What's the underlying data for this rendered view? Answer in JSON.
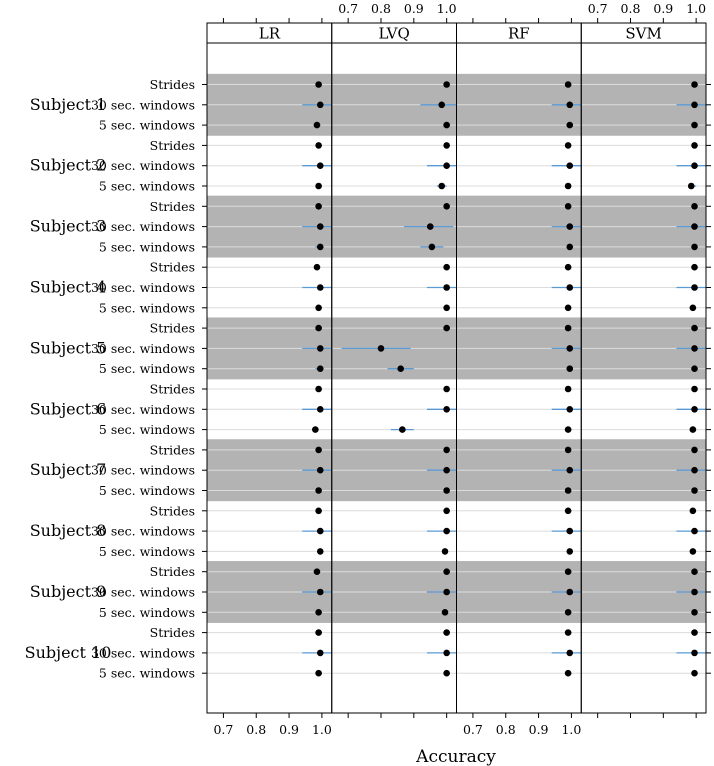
{
  "chart_data": {
    "type": "dotplot",
    "xlabel": "Accuracy",
    "panels": [
      "LR",
      "LVQ",
      "RF",
      "SVM"
    ],
    "xlim": [
      0.65,
      1.03
    ],
    "x_ticks": [
      0.7,
      0.8,
      0.9,
      1.0
    ],
    "x_tick_labels": [
      "0.7",
      "0.8",
      "0.9",
      "1.0"
    ],
    "row_labels": [
      "Strides",
      "30 sec. windows",
      "5 sec. windows"
    ],
    "shaded_subjects": [
      "Subject 1",
      "Subject 3",
      "Subject 5",
      "Subject 7",
      "Subject 9"
    ],
    "colors": {
      "shade": "#b3b3b3",
      "interval": "#5b9bd5",
      "point": "#000000",
      "refline": "#dcdcdc"
    },
    "subjects": [
      {
        "name": "Subject 1",
        "rows": [
          {
            "label": "Strides",
            "values": [
              [
                0.99,
                0.99,
                1.0
              ],
              [
                1.0,
                1.0,
                1.0
              ],
              [
                0.99,
                0.99,
                1.0
              ],
              [
                0.995,
                0.99,
                1.0
              ]
            ]
          },
          {
            "label": "30 sec. windows",
            "values": [
              [
                0.995,
                0.94,
                1.03
              ],
              [
                0.985,
                0.92,
                1.03
              ],
              [
                0.995,
                0.94,
                1.03
              ],
              [
                0.995,
                0.94,
                1.03
              ]
            ]
          },
          {
            "label": "5 sec. windows",
            "values": [
              [
                0.985,
                0.98,
                0.99
              ],
              [
                1.0,
                1.0,
                1.0
              ],
              [
                0.995,
                0.99,
                1.0
              ],
              [
                0.995,
                0.99,
                1.0
              ]
            ]
          }
        ]
      },
      {
        "name": "Subject 2",
        "rows": [
          {
            "label": "Strides",
            "values": [
              [
                0.99,
                0.99,
                1.0
              ],
              [
                1.0,
                1.0,
                1.0
              ],
              [
                0.99,
                0.99,
                1.0
              ],
              [
                0.995,
                0.99,
                1.0
              ]
            ]
          },
          {
            "label": "30 sec. windows",
            "values": [
              [
                0.995,
                0.94,
                1.03
              ],
              [
                1.0,
                0.94,
                1.03
              ],
              [
                0.995,
                0.94,
                1.03
              ],
              [
                0.995,
                0.94,
                1.03
              ]
            ]
          },
          {
            "label": "5 sec. windows",
            "values": [
              [
                0.99,
                0.99,
                1.0
              ],
              [
                0.985,
                0.97,
                1.0
              ],
              [
                0.99,
                0.99,
                1.0
              ],
              [
                0.985,
                0.98,
                1.0
              ]
            ]
          }
        ]
      },
      {
        "name": "Subject 3",
        "rows": [
          {
            "label": "Strides",
            "values": [
              [
                0.99,
                0.99,
                1.0
              ],
              [
                1.0,
                1.0,
                1.0
              ],
              [
                0.99,
                0.99,
                1.0
              ],
              [
                0.995,
                0.99,
                1.0
              ]
            ]
          },
          {
            "label": "30 sec. windows",
            "values": [
              [
                0.995,
                0.94,
                1.03
              ],
              [
                0.95,
                0.87,
                1.02
              ],
              [
                0.995,
                0.94,
                1.03
              ],
              [
                0.995,
                0.94,
                1.03
              ]
            ]
          },
          {
            "label": "5 sec. windows",
            "values": [
              [
                0.995,
                0.98,
                1.0
              ],
              [
                0.955,
                0.92,
                0.99
              ],
              [
                0.995,
                0.99,
                1.0
              ],
              [
                0.995,
                0.99,
                1.0
              ]
            ]
          }
        ]
      },
      {
        "name": "Subject 4",
        "rows": [
          {
            "label": "Strides",
            "values": [
              [
                0.985,
                0.98,
                0.99
              ],
              [
                1.0,
                1.0,
                1.0
              ],
              [
                0.99,
                0.99,
                1.0
              ],
              [
                0.995,
                0.99,
                1.0
              ]
            ]
          },
          {
            "label": "30 sec. windows",
            "values": [
              [
                0.995,
                0.94,
                1.03
              ],
              [
                1.0,
                0.94,
                1.03
              ],
              [
                0.995,
                0.94,
                1.03
              ],
              [
                0.995,
                0.94,
                1.03
              ]
            ]
          },
          {
            "label": "5 sec. windows",
            "values": [
              [
                0.99,
                0.99,
                1.0
              ],
              [
                1.0,
                1.0,
                1.0
              ],
              [
                0.99,
                0.99,
                1.0
              ],
              [
                0.99,
                0.98,
                1.0
              ]
            ]
          }
        ]
      },
      {
        "name": "Subject 5",
        "rows": [
          {
            "label": "Strides",
            "values": [
              [
                0.99,
                0.99,
                1.0
              ],
              [
                1.0,
                1.0,
                1.0
              ],
              [
                0.99,
                0.99,
                1.0
              ],
              [
                0.995,
                0.99,
                1.0
              ]
            ]
          },
          {
            "label": "30 sec. windows",
            "values": [
              [
                0.995,
                0.94,
                1.03
              ],
              [
                0.8,
                0.68,
                0.89
              ],
              [
                0.995,
                0.94,
                1.03
              ],
              [
                0.995,
                0.94,
                1.03
              ]
            ]
          },
          {
            "label": "5 sec. windows",
            "values": [
              [
                0.995,
                0.98,
                1.0
              ],
              [
                0.86,
                0.82,
                0.9
              ],
              [
                0.995,
                0.99,
                1.0
              ],
              [
                0.995,
                0.99,
                1.0
              ]
            ]
          }
        ]
      },
      {
        "name": "Subject 6",
        "rows": [
          {
            "label": "Strides",
            "values": [
              [
                0.99,
                0.99,
                1.0
              ],
              [
                1.0,
                1.0,
                1.0
              ],
              [
                0.99,
                0.99,
                1.0
              ],
              [
                0.995,
                0.99,
                1.0
              ]
            ]
          },
          {
            "label": "30 sec. windows",
            "values": [
              [
                0.995,
                0.94,
                1.03
              ],
              [
                1.0,
                0.94,
                1.03
              ],
              [
                0.995,
                0.94,
                1.03
              ],
              [
                0.995,
                0.94,
                1.03
              ]
            ]
          },
          {
            "label": "5 sec. windows",
            "values": [
              [
                0.98,
                0.97,
                0.99
              ],
              [
                0.865,
                0.83,
                0.9
              ],
              [
                0.99,
                0.99,
                1.0
              ],
              [
                0.99,
                0.98,
                1.0
              ]
            ]
          }
        ]
      },
      {
        "name": "Subject 7",
        "rows": [
          {
            "label": "Strides",
            "values": [
              [
                0.99,
                0.99,
                1.0
              ],
              [
                1.0,
                1.0,
                1.0
              ],
              [
                0.99,
                0.99,
                1.0
              ],
              [
                0.995,
                0.99,
                1.0
              ]
            ]
          },
          {
            "label": "30 sec. windows",
            "values": [
              [
                0.995,
                0.94,
                1.03
              ],
              [
                1.0,
                0.94,
                1.03
              ],
              [
                0.995,
                0.94,
                1.03
              ],
              [
                0.995,
                0.94,
                1.03
              ]
            ]
          },
          {
            "label": "5 sec. windows",
            "values": [
              [
                0.99,
                0.98,
                1.0
              ],
              [
                1.0,
                0.99,
                1.0
              ],
              [
                0.99,
                0.99,
                1.0
              ],
              [
                0.995,
                0.99,
                1.0
              ]
            ]
          }
        ]
      },
      {
        "name": "Subject 8",
        "rows": [
          {
            "label": "Strides",
            "values": [
              [
                0.99,
                0.99,
                1.0
              ],
              [
                1.0,
                1.0,
                1.0
              ],
              [
                0.99,
                0.99,
                1.0
              ],
              [
                0.99,
                0.99,
                1.0
              ]
            ]
          },
          {
            "label": "30 sec. windows",
            "values": [
              [
                0.995,
                0.94,
                1.03
              ],
              [
                1.0,
                0.94,
                1.03
              ],
              [
                0.995,
                0.94,
                1.03
              ],
              [
                0.995,
                0.94,
                1.03
              ]
            ]
          },
          {
            "label": "5 sec. windows",
            "values": [
              [
                0.995,
                0.99,
                1.0
              ],
              [
                0.995,
                0.99,
                1.0
              ],
              [
                0.995,
                0.99,
                1.0
              ],
              [
                0.99,
                0.98,
                1.0
              ]
            ]
          }
        ]
      },
      {
        "name": "Subject 9",
        "rows": [
          {
            "label": "Strides",
            "values": [
              [
                0.985,
                0.98,
                0.99
              ],
              [
                1.0,
                1.0,
                1.0
              ],
              [
                0.99,
                0.99,
                1.0
              ],
              [
                0.995,
                0.99,
                1.0
              ]
            ]
          },
          {
            "label": "30 sec. windows",
            "values": [
              [
                0.995,
                0.94,
                1.03
              ],
              [
                1.0,
                0.94,
                1.03
              ],
              [
                0.995,
                0.94,
                1.03
              ],
              [
                0.995,
                0.94,
                1.03
              ]
            ]
          },
          {
            "label": "5 sec. windows",
            "values": [
              [
                0.99,
                0.98,
                1.0
              ],
              [
                0.995,
                0.99,
                1.0
              ],
              [
                0.99,
                0.99,
                1.0
              ],
              [
                0.995,
                0.99,
                1.0
              ]
            ]
          }
        ]
      },
      {
        "name": "Subject 10",
        "rows": [
          {
            "label": "Strides",
            "values": [
              [
                0.99,
                0.99,
                1.0
              ],
              [
                1.0,
                1.0,
                1.0
              ],
              [
                0.99,
                0.99,
                1.0
              ],
              [
                0.995,
                0.99,
                1.0
              ]
            ]
          },
          {
            "label": "30 sec. windows",
            "values": [
              [
                0.995,
                0.94,
                1.03
              ],
              [
                1.0,
                0.94,
                1.03
              ],
              [
                0.995,
                0.94,
                1.03
              ],
              [
                0.995,
                0.94,
                1.03
              ]
            ]
          },
          {
            "label": "5 sec. windows",
            "values": [
              [
                0.99,
                0.99,
                1.0
              ],
              [
                1.0,
                1.0,
                1.0
              ],
              [
                0.99,
                0.99,
                1.0
              ],
              [
                0.995,
                0.99,
                1.0
              ]
            ]
          }
        ]
      }
    ]
  }
}
